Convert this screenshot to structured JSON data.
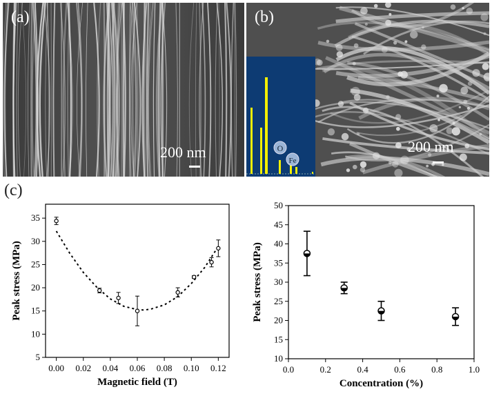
{
  "panels": {
    "a": {
      "label": "(a)",
      "scale_text": "200 nm"
    },
    "b": {
      "label": "(b)",
      "scale_text": "200 nm",
      "eds_peaks": [
        "O",
        "Fe"
      ]
    },
    "c": {
      "label": "(c)"
    }
  },
  "chart_data": [
    {
      "type": "scatter",
      "xlabel": "Magnetic field (T)",
      "ylabel": "Peak stress (MPa)",
      "xlim": [
        -0.008,
        0.128
      ],
      "ylim": [
        5,
        38
      ],
      "xticks": [
        0.0,
        0.02,
        0.04,
        0.06,
        0.08,
        0.1,
        0.12
      ],
      "xtick_labels": [
        "0.00",
        "0.02",
        "0.04",
        "0.06",
        "0.08",
        "0.10",
        "0.12"
      ],
      "yticks": [
        5,
        10,
        15,
        20,
        25,
        30,
        35
      ],
      "ytick_labels": [
        "5",
        "10",
        "15",
        "20",
        "25",
        "30",
        "35"
      ],
      "series": [
        {
          "x": [
            0.0,
            0.032,
            0.046,
            0.06,
            0.09,
            0.102,
            0.115,
            0.12
          ],
          "y": [
            34.4,
            19.4,
            17.8,
            15.0,
            19.0,
            22.3,
            25.5,
            28.5
          ],
          "err": [
            0.8,
            0.5,
            1.2,
            3.2,
            1.0,
            0.3,
            1.0,
            1.8
          ]
        }
      ],
      "fit_curve": "quadratic",
      "fit_points": {
        "x": [
          0.0,
          0.01,
          0.02,
          0.03,
          0.04,
          0.05,
          0.06,
          0.065,
          0.07,
          0.08,
          0.09,
          0.1,
          0.11,
          0.12
        ],
        "y": [
          32.2,
          27.4,
          23.3,
          20.1,
          17.6,
          16.0,
          15.3,
          15.2,
          15.4,
          16.3,
          18.1,
          20.9,
          24.4,
          28.9
        ]
      },
      "grid": false
    },
    {
      "type": "scatter",
      "xlabel": "Concentration (%)",
      "ylabel": "Peak stress (MPa)",
      "xlim": [
        0.0,
        1.0
      ],
      "ylim": [
        10,
        50
      ],
      "xticks": [
        0.0,
        0.2,
        0.4,
        0.6,
        0.8,
        1.0
      ],
      "xtick_labels": [
        "0.0",
        "0.2",
        "0.4",
        "0.6",
        "0.8",
        "1.0"
      ],
      "yticks": [
        10,
        15,
        20,
        25,
        30,
        35,
        40,
        45,
        50
      ],
      "ytick_labels": [
        "10",
        "15",
        "20",
        "25",
        "30",
        "35",
        "40",
        "45",
        "50"
      ],
      "series": [
        {
          "x": [
            0.1,
            0.3,
            0.5,
            0.9
          ],
          "y": [
            37.5,
            28.5,
            22.5,
            21.0
          ],
          "err": [
            5.8,
            1.5,
            2.5,
            2.3
          ]
        }
      ],
      "grid": false
    }
  ]
}
